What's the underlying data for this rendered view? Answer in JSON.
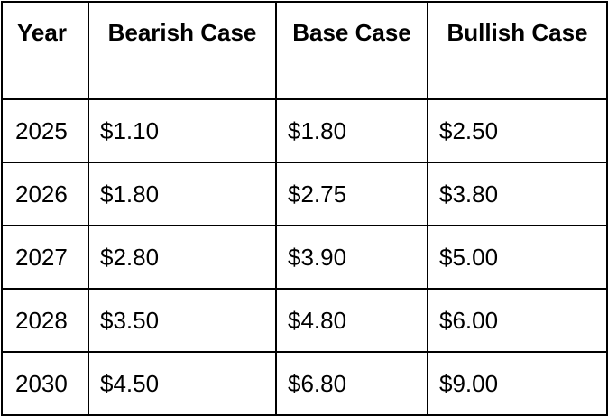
{
  "table": {
    "headers": [
      "Year",
      "Bearish Case",
      "Base Case",
      "Bullish Case"
    ],
    "rows": [
      [
        "2025",
        "$1.10",
        "$1.80",
        "$2.50"
      ],
      [
        "2026",
        "$1.80",
        "$2.75",
        "$3.80"
      ],
      [
        "2027",
        "$2.80",
        "$3.90",
        "$5.00"
      ],
      [
        "2028",
        "$3.50",
        "$4.80",
        "$6.00"
      ],
      [
        "2030",
        "$4.50",
        "$6.80",
        "$9.00"
      ]
    ]
  }
}
